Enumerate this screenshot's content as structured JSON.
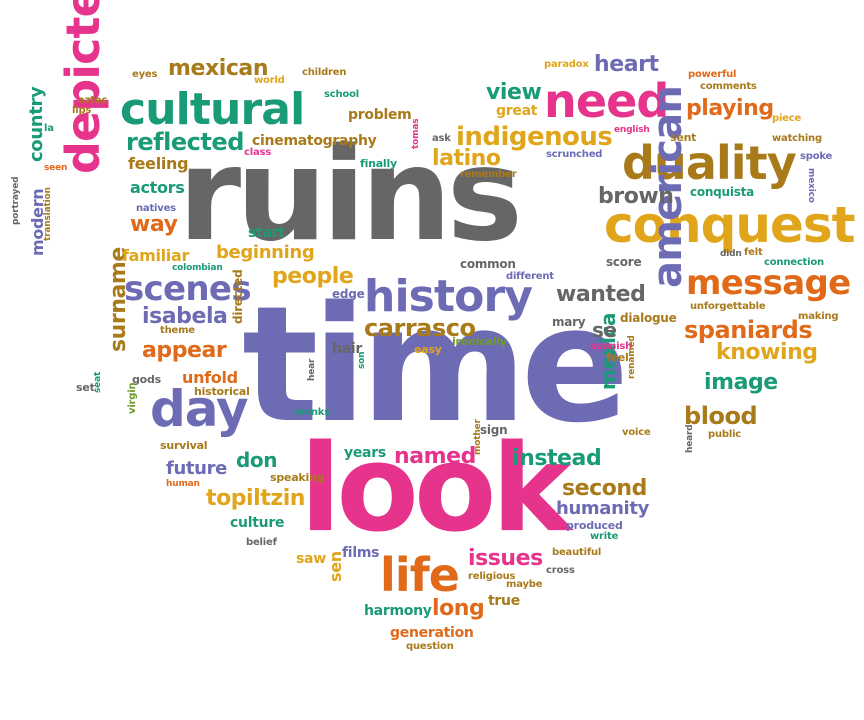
{
  "words": {
    "ruins": "ruins",
    "time": "time",
    "look": "look",
    "conquest": "conquest",
    "duality": "duality",
    "need": "need",
    "cultural": "cultural",
    "history": "history",
    "depicted": "depicted",
    "american": "american",
    "day": "day",
    "life": "life",
    "message": "message",
    "scenes": "scenes",
    "indigenous": "indigenous",
    "spaniards": "spaniards",
    "blood": "blood",
    "knowing": "knowing",
    "image": "image",
    "carrasco": "carrasco",
    "wanted": "wanted",
    "brown": "brown",
    "latino": "latino",
    "reflected": "reflected",
    "mexican": "mexican",
    "heart": "heart",
    "playing": "playing",
    "view": "view",
    "people": "people",
    "isabela": "isabela",
    "appear": "appear",
    "surname": "surname",
    "country": "country",
    "modern": "modern",
    "mexica": "mexica",
    "named": "named",
    "instead": "instead",
    "second": "second",
    "humanity": "humanity",
    "topiltzin": "topiltzin",
    "issues": "issues",
    "long": "long",
    "generation": "generation",
    "future": "future",
    "don": "don",
    "culture": "culture",
    "beginning": "beginning",
    "familiar": "familiar",
    "actors": "actors",
    "feeling": "feeling",
    "way": "way",
    "unfold": "unfold",
    "start": "start",
    "cinematography": "cinematography",
    "problem": "problem",
    "great": "great",
    "se": "se",
    "years": "years",
    "sign": "sign",
    "films": "films",
    "saw": "saw",
    "harmony": "harmony",
    "true": "true",
    "sen": "sen",
    "score": "score",
    "common": "common",
    "edge": "edge",
    "mary": "mary",
    "dialogue": "dialogue",
    "spanish": "spanish",
    "feel": "feel",
    "easy": "easy",
    "ironically": "ironically",
    "hair": "hair",
    "directed": "directed",
    "historical": "historical",
    "theme": "theme",
    "gods": "gods",
    "virgin": "virgin",
    "survival": "survival",
    "human": "human",
    "speaking": "speaking",
    "monks": "monks",
    "belief": "belief",
    "produced": "produced",
    "write": "write",
    "beautiful": "beautiful",
    "cross": "cross",
    "maybe": "maybe",
    "religious": "religious",
    "question": "question",
    "mother": "mother",
    "voice": "voice",
    "renamed": "renamed",
    "public": "public",
    "heard": "heard",
    "unforgettable": "unforgettable",
    "making": "making",
    "connection": "connection",
    "felt": "felt",
    "didn": "didn",
    "conquista": "conquista",
    "mexico": "mexico",
    "spoke": "spoke",
    "watching": "watching",
    "piece": "piece",
    "sent": "sent",
    "comments": "comments",
    "powerful": "powerful",
    "paradox": "paradox",
    "english": "english",
    "scrunched": "scrunched",
    "ask": "ask",
    "remember": "remember",
    "tomas": "tomas",
    "finally": "finally",
    "class": "class",
    "school": "school",
    "children": "children",
    "world": "world",
    "eyes": "eyes",
    "aztec": "aztec",
    "lips": "lips",
    "la": "la",
    "seen": "seen",
    "natives": "natives",
    "translation": "translation",
    "portrayed": "portrayed",
    "colombian": "colombian",
    "set": "set",
    "seat": "seat",
    "different": "different",
    "hear": "hear",
    "son": "son"
  }
}
